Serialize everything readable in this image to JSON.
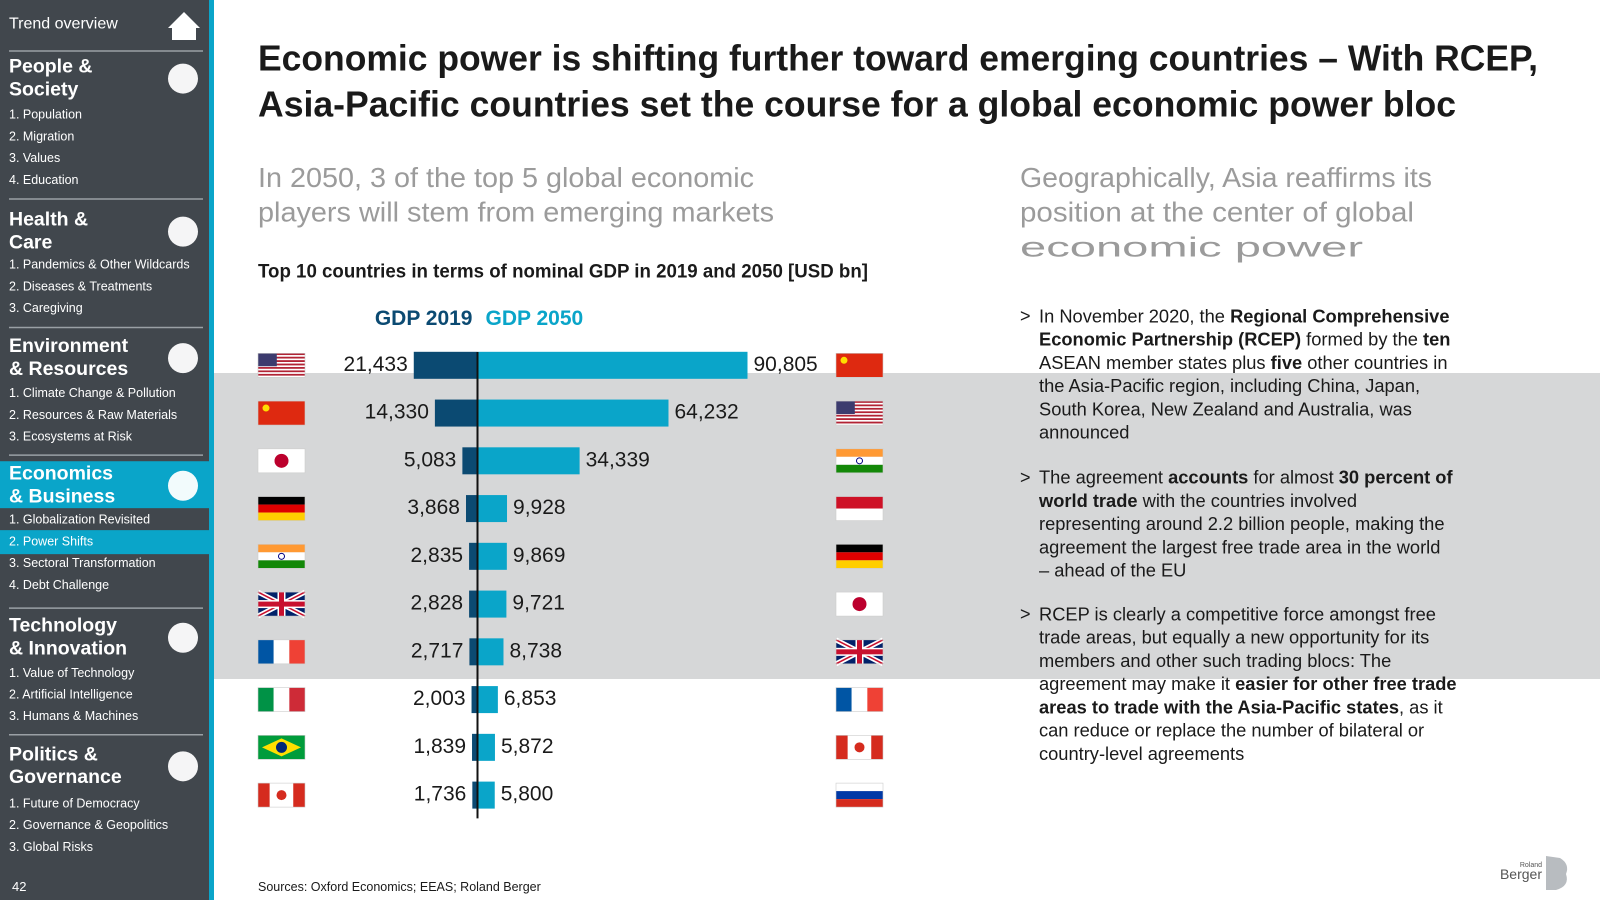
{
  "sidebar": {
    "top": "Trend overview",
    "page": "42",
    "active_section": 3,
    "active_item": 1,
    "sections": [
      {
        "title": [
          "People &",
          "Society"
        ],
        "items": [
          "1. Population",
          "2. Migration",
          "3. Values",
          "4. Education"
        ]
      },
      {
        "title": [
          "Health &",
          "Care"
        ],
        "items": [
          "1. Pandemics & Other Wildcards",
          "2. Diseases & Treatments",
          "3. Caregiving"
        ]
      },
      {
        "title": [
          "Environment",
          "& Resources"
        ],
        "items": [
          "1. Climate Change & Pollution",
          "2. Resources & Raw Materials",
          "3. Ecosystems at Risk"
        ]
      },
      {
        "title": [
          "Economics",
          "& Business"
        ],
        "items": [
          "1. Globalization Revisited",
          "2. Power Shifts",
          "3. Sectoral Transformation",
          "4. Debt Challenge"
        ]
      },
      {
        "title": [
          "Technology",
          "& Innovation"
        ],
        "items": [
          "1. Value of Technology",
          "2. Artificial Intelligence",
          "3. Humans & Machines"
        ]
      },
      {
        "title": [
          "Politics &",
          "Governance"
        ],
        "items": [
          "1. Future of Democracy",
          "2. Governance & Geopolitics",
          "3. Global Risks"
        ]
      }
    ]
  },
  "slide": {
    "title": [
      "Economic power is shifting further toward emerging countries – With RCEP,",
      "Asia-Pacific countries set the course for a global economic power bloc"
    ],
    "subtitle_left": [
      "In 2050, 3 of the top 5 global economic",
      "players will stem from emerging markets"
    ],
    "subtitle_right": [
      "Geographically, Asia reaffirms its",
      "position at the center of global",
      "economic power"
    ],
    "bullet_marker": ">",
    "bullets": [
      {
        "lines": [
          [
            "In November 2020, the ",
            {
              "text": "Regional Comprehensive",
              "bold": true
            }
          ],
          [
            {
              "text": "Economic Partnership (RCEP)",
              "bold": true
            },
            " formed by the ",
            {
              "text": "ten",
              "bold": true
            }
          ],
          [
            "ASEAN member states plus ",
            {
              "text": "five",
              "bold": true
            },
            " other countries in"
          ],
          [
            "the Asia-Pacific region, including China, Japan,"
          ],
          [
            "South Korea, New Zealand and Australia, was"
          ],
          [
            "announced"
          ]
        ]
      },
      {
        "lines": [
          [
            "The agreement ",
            {
              "text": "accounts",
              "bold": true
            },
            " for almost ",
            {
              "text": "30 percent of",
              "bold": true
            }
          ],
          [
            {
              "text": "world trade",
              "bold": true
            },
            " with the countries involved"
          ],
          [
            "representing around 2.2 billion people, making the"
          ],
          [
            "agreement the largest free trade area in the world"
          ],
          [
            "– ahead of the EU"
          ]
        ]
      },
      {
        "lines": [
          [
            "RCEP is clearly a competitive force amongst free"
          ],
          [
            "trade areas, but equally a new opportunity for its"
          ],
          [
            "members and other such trading blocs: The"
          ],
          [
            "agreement may make it ",
            {
              "text": "easier for other free trade",
              "bold": true
            }
          ],
          [
            {
              "text": "areas to trade with the Asia-Pacific states",
              "bold": true
            },
            ", as it"
          ],
          [
            "can reduce or replace the number of bilateral or"
          ],
          [
            "country-level agreements"
          ]
        ]
      }
    ],
    "sources": "Sources: Oxford Economics; EEAS; Roland Berger",
    "logo": [
      "Roland",
      "Berger"
    ]
  },
  "chart_data": {
    "type": "bar",
    "title": "Top 10 countries in terms of nominal GDP in 2019 and 2050 [USD bn]",
    "series": [
      {
        "name": "GDP 2019",
        "color": "#0b4a72",
        "values": [
          21433,
          14330,
          5083,
          3868,
          2835,
          2828,
          2717,
          2003,
          1839,
          1736
        ],
        "value_labels": [
          "21,433",
          "14,330",
          "5,083",
          "3,868",
          "2,835",
          "2,828",
          "2,717",
          "2,003",
          "1,839",
          "1,736"
        ]
      },
      {
        "name": "GDP 2050",
        "color": "#0aa5c9",
        "values": [
          90805,
          64232,
          34339,
          9928,
          9869,
          9721,
          8738,
          6853,
          5872,
          5800
        ],
        "value_labels": [
          "90,805",
          "64,232",
          "34,339",
          "9,928",
          "9,869",
          "9,721",
          "8,738",
          "6,853",
          "5,872",
          "5,800"
        ]
      }
    ]
  }
}
